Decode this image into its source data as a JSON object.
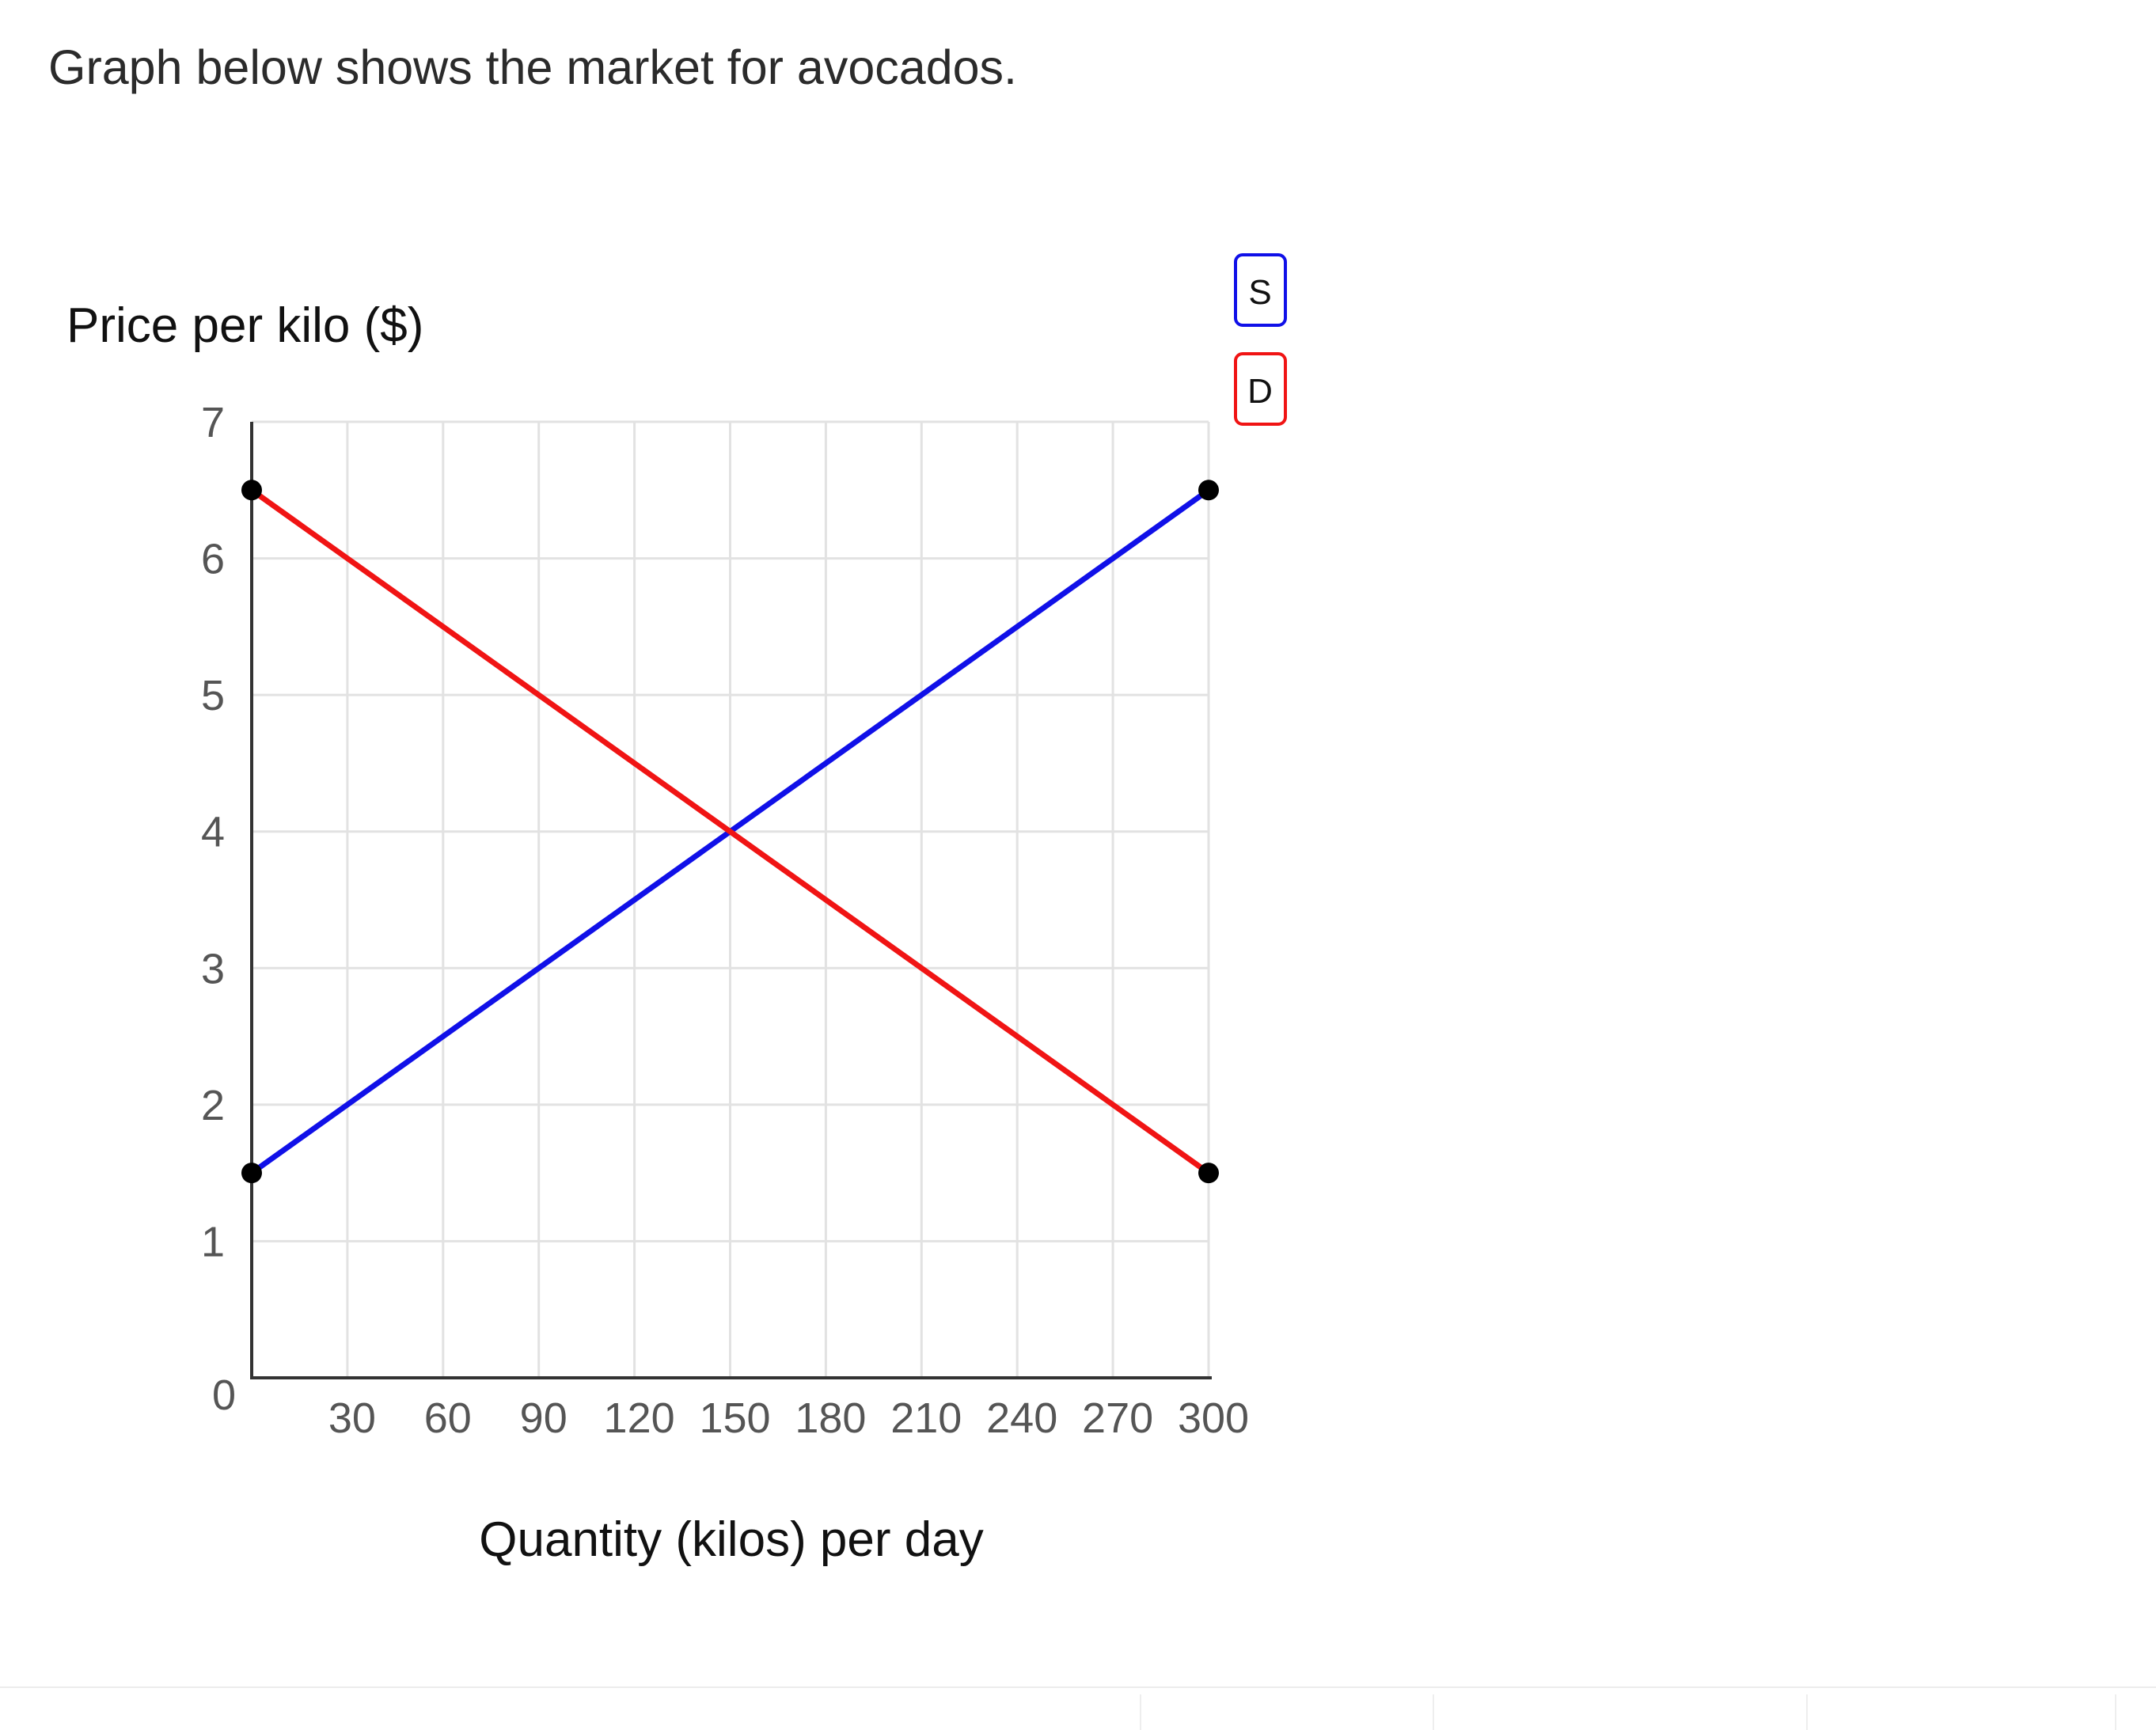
{
  "question": "Graph below shows the market for avocados.",
  "chart_data": {
    "type": "line",
    "xlabel": "Quantity (kilos) per day",
    "ylabel": "Price per kilo ($)",
    "xlim": [
      0,
      300
    ],
    "ylim": [
      0,
      7
    ],
    "x_ticks": [
      30,
      60,
      90,
      120,
      150,
      180,
      210,
      240,
      270,
      300
    ],
    "y_ticks": [
      0,
      1,
      2,
      3,
      4,
      5,
      6,
      7
    ],
    "grid": true,
    "series": [
      {
        "name": "S",
        "color": "#1010e8",
        "points": [
          [
            0,
            1.5
          ],
          [
            300,
            6.5
          ]
        ]
      },
      {
        "name": "D",
        "color": "#f01414",
        "points": [
          [
            0,
            6.5
          ],
          [
            300,
            1.5
          ]
        ]
      }
    ],
    "legend_position": "top-right"
  }
}
